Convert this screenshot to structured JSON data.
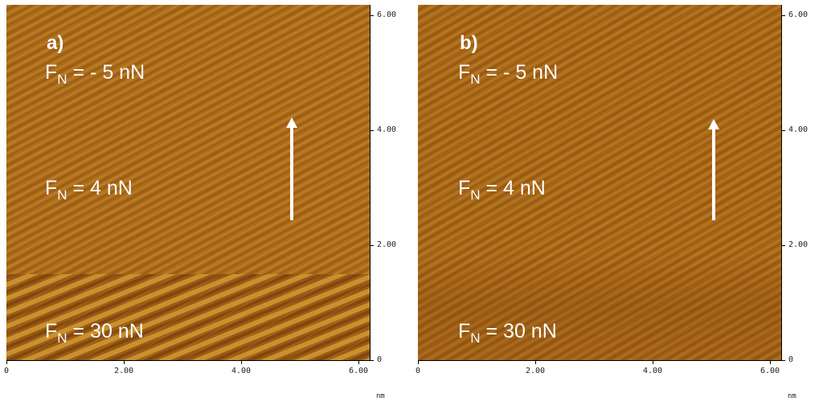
{
  "colors": {
    "afm_base": "#a86718",
    "afm_dark": "#7e4510",
    "afm_light": "#c98d2a",
    "overlay_text": "#ffffff"
  },
  "axis": {
    "x_ticks": [
      "0",
      "2.00",
      "4.00",
      "6.00"
    ],
    "y_ticks": [
      "0",
      "2.00",
      "4.00",
      "6.00"
    ],
    "unit": "nm",
    "range_nm": [
      0,
      6.2
    ]
  },
  "panels": [
    {
      "letter": "a)",
      "labels": [
        {
          "prefix": "F",
          "sub": "N",
          "value": " = - 5 nN"
        },
        {
          "prefix": "F",
          "sub": "N",
          "value": " = 4 nN"
        },
        {
          "prefix": "F",
          "sub": "N",
          "value": " = 30 nN"
        }
      ],
      "arrow_icon": "up-arrow-icon"
    },
    {
      "letter": "b)",
      "labels": [
        {
          "prefix": "F",
          "sub": "N",
          "value": " = - 5 nN"
        },
        {
          "prefix": "F",
          "sub": "N",
          "value": " = 4 nN"
        },
        {
          "prefix": "F",
          "sub": "N",
          "value": " = 30 nN"
        }
      ],
      "arrow_icon": "up-arrow-icon"
    }
  ]
}
